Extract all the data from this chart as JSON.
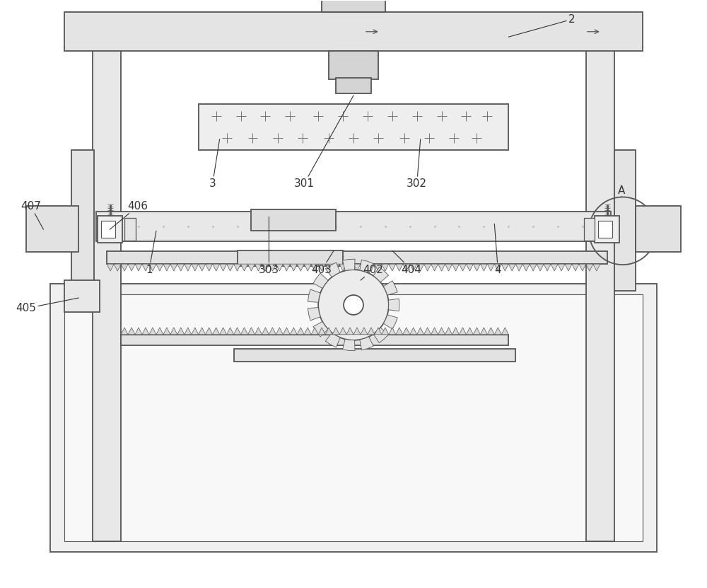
{
  "bg_color": "#ffffff",
  "lc": "#555555",
  "lw": 1.3,
  "fill_base": "#efefef",
  "fill_light": "#f5f5f5",
  "fill_mid": "#e4e4e4",
  "fill_dark": "#d8d8d8"
}
